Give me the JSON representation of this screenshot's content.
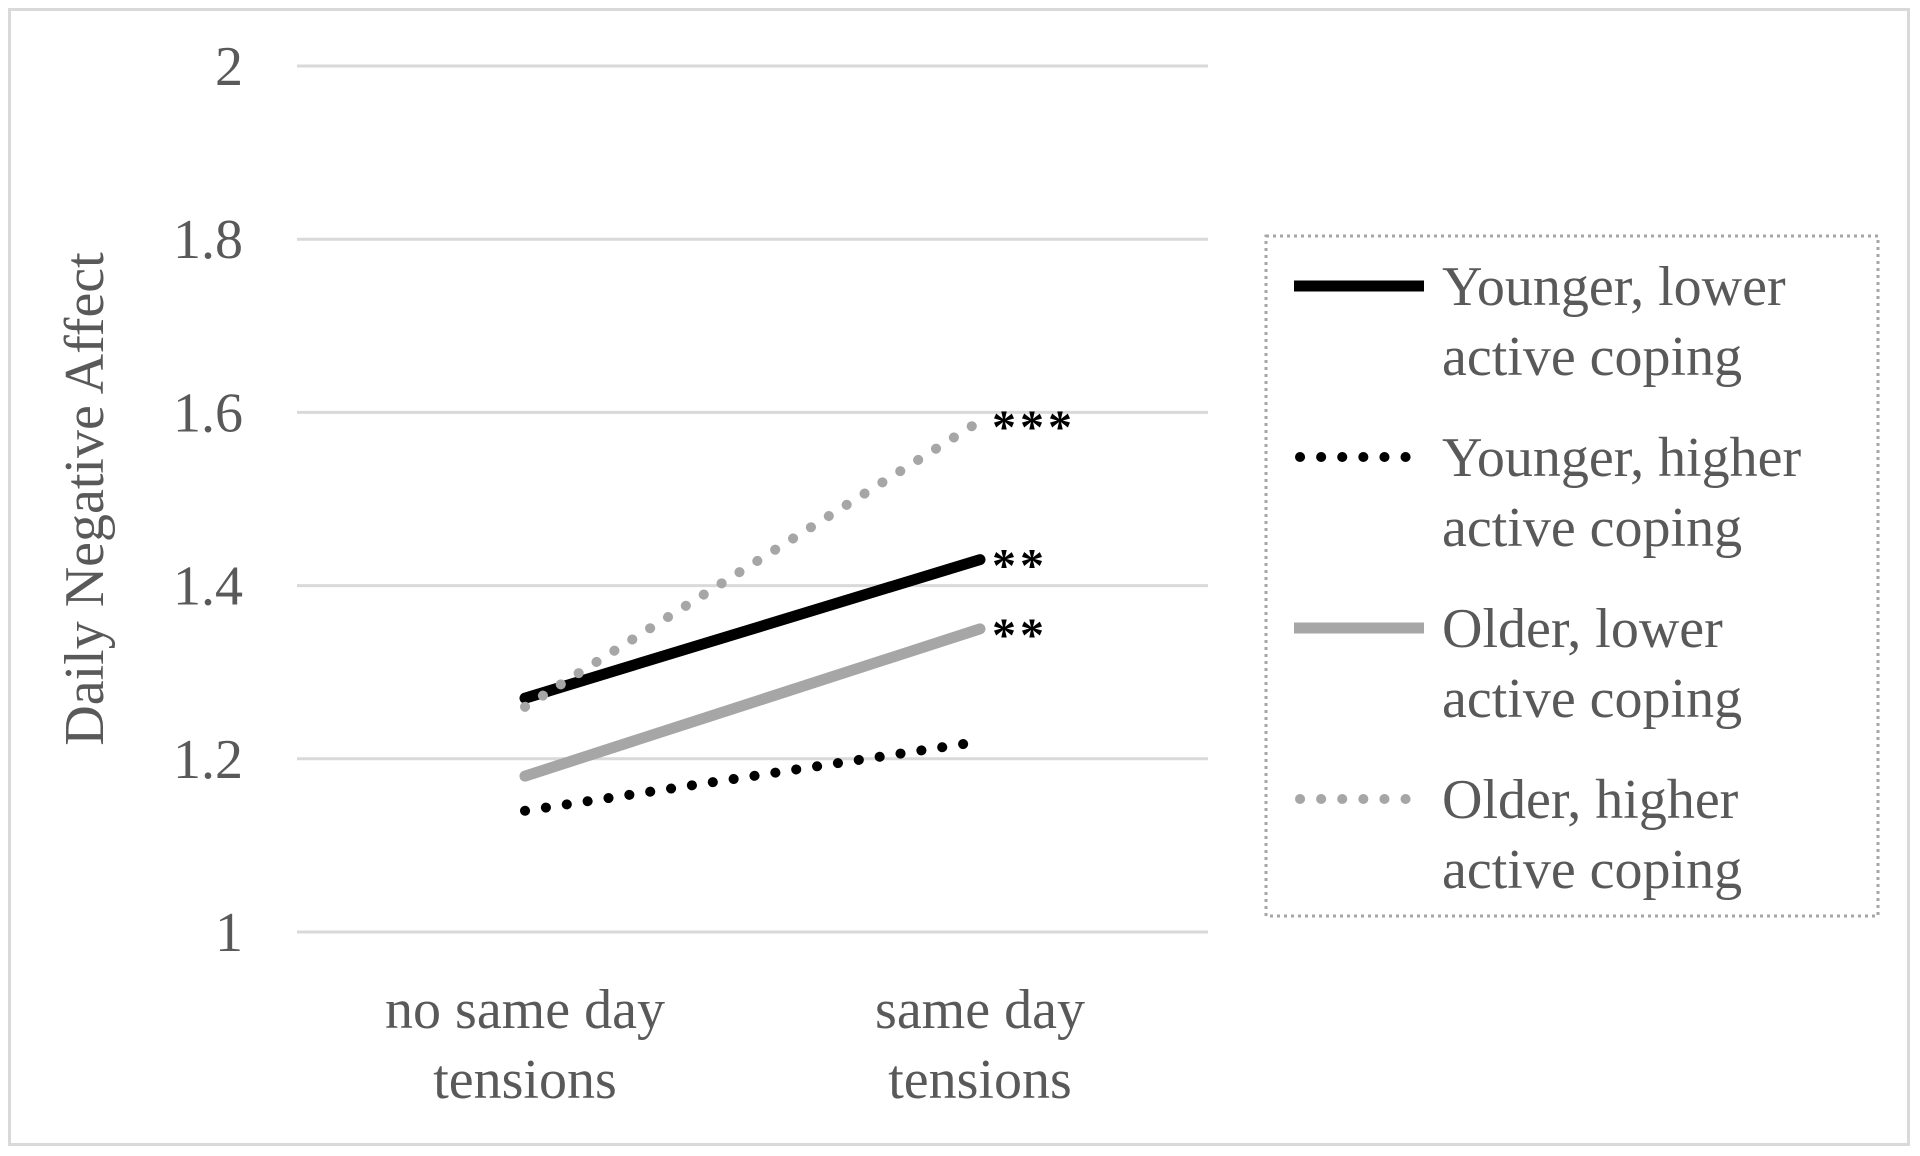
{
  "chart_data": {
    "type": "line",
    "title": "",
    "xlabel": "",
    "ylabel": "Daily Negative Affect",
    "ylim": [
      1,
      2
    ],
    "yticks": [
      "1",
      "1.2",
      "1.4",
      "1.6",
      "1.8",
      "2"
    ],
    "ytick_values": [
      1,
      1.2,
      1.4,
      1.6,
      1.8,
      2
    ],
    "categories": [
      {
        "line1": "no same day",
        "line2": "tensions"
      },
      {
        "line1": "same day",
        "line2": "tensions"
      }
    ],
    "grid": true,
    "legend_position": "right",
    "series": [
      {
        "name_line1": "Younger, lower",
        "name_line2": "active coping",
        "values": [
          1.27,
          1.43
        ],
        "color": "#000000",
        "style": "solid",
        "significance": "**"
      },
      {
        "name_line1": "Younger, higher",
        "name_line2": "active coping",
        "values": [
          1.14,
          1.22
        ],
        "color": "#000000",
        "style": "dotted",
        "significance": ""
      },
      {
        "name_line1": "Older, lower",
        "name_line2": "active coping",
        "values": [
          1.18,
          1.35
        ],
        "color": "#a6a6a6",
        "style": "solid",
        "significance": "**"
      },
      {
        "name_line1": "Older, higher",
        "name_line2": "active coping",
        "values": [
          1.26,
          1.59
        ],
        "color": "#a6a6a6",
        "style": "dotted",
        "significance": "***"
      }
    ]
  }
}
